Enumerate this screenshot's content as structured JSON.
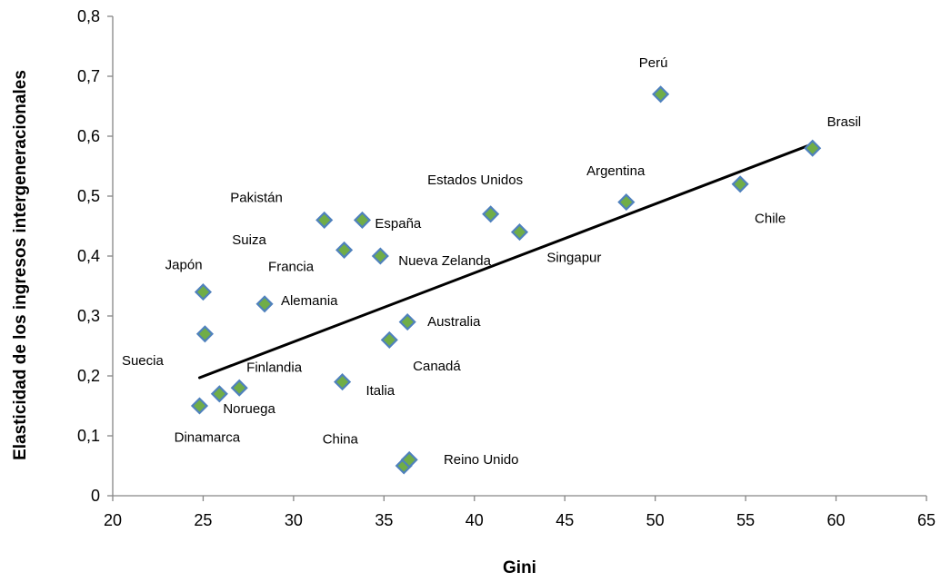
{
  "chart_data": {
    "type": "scatter",
    "title": "",
    "xlabel": "Gini",
    "ylabel": "Elasticidad de los ingresos intergeneracionales",
    "xlim": [
      20,
      65
    ],
    "ylim": [
      0,
      0.8
    ],
    "x_ticks": [
      {
        "value": 20,
        "label": "20"
      },
      {
        "value": 25,
        "label": "25"
      },
      {
        "value": 30,
        "label": "30"
      },
      {
        "value": 35,
        "label": "35"
      },
      {
        "value": 40,
        "label": "40"
      },
      {
        "value": 45,
        "label": "45"
      },
      {
        "value": 50,
        "label": "50"
      },
      {
        "value": 55,
        "label": "55"
      },
      {
        "value": 60,
        "label": "60"
      },
      {
        "value": 65,
        "label": "65"
      }
    ],
    "y_ticks": [
      {
        "value": 0,
        "label": "0"
      },
      {
        "value": 0.1,
        "label": "0,1"
      },
      {
        "value": 0.2,
        "label": "0,2"
      },
      {
        "value": 0.3,
        "label": "0,3"
      },
      {
        "value": 0.4,
        "label": "0,4"
      },
      {
        "value": 0.5,
        "label": "0,5"
      },
      {
        "value": 0.6,
        "label": "0,6"
      },
      {
        "value": 0.7,
        "label": "0,7"
      },
      {
        "value": 0.8,
        "label": "0,8"
      }
    ],
    "grid": false,
    "legend": "none",
    "marker": "diamond",
    "marker_fill": "#70ad47",
    "marker_edge": "#4f81bd",
    "trendline": {
      "x": [
        24.8,
        58.7
      ],
      "y": [
        0.197,
        0.587
      ],
      "color": "#000000"
    },
    "points": [
      {
        "x": 24.8,
        "y": 0.15
      },
      {
        "x": 25.9,
        "y": 0.17
      },
      {
        "x": 27.0,
        "y": 0.18
      },
      {
        "x": 25.1,
        "y": 0.27
      },
      {
        "x": 25.0,
        "y": 0.34
      },
      {
        "x": 28.4,
        "y": 0.32
      },
      {
        "x": 31.7,
        "y": 0.46
      },
      {
        "x": 32.8,
        "y": 0.41
      },
      {
        "x": 33.8,
        "y": 0.46
      },
      {
        "x": 34.8,
        "y": 0.4
      },
      {
        "x": 32.7,
        "y": 0.19
      },
      {
        "x": 35.3,
        "y": 0.26
      },
      {
        "x": 36.3,
        "y": 0.29
      },
      {
        "x": 36.1,
        "y": 0.05
      },
      {
        "x": 36.4,
        "y": 0.06
      },
      {
        "x": 40.9,
        "y": 0.47
      },
      {
        "x": 42.5,
        "y": 0.44
      },
      {
        "x": 48.4,
        "y": 0.49
      },
      {
        "x": 50.3,
        "y": 0.67
      },
      {
        "x": 54.7,
        "y": 0.52
      },
      {
        "x": 58.7,
        "y": 0.58
      }
    ],
    "annotations": [
      {
        "text": "Suecia",
        "x": 20.5,
        "y": 0.218
      },
      {
        "text": "Dinamarca",
        "x": 23.4,
        "y": 0.09
      },
      {
        "text": "Noruega",
        "x": 26.1,
        "y": 0.138
      },
      {
        "text": "Finlandia",
        "x": 27.4,
        "y": 0.207
      },
      {
        "text": "Japón",
        "x": 22.9,
        "y": 0.378
      },
      {
        "text": "Alemania",
        "x": 29.3,
        "y": 0.318
      },
      {
        "text": "Suiza",
        "x": 26.6,
        "y": 0.42
      },
      {
        "text": "Francia",
        "x": 28.6,
        "y": 0.375
      },
      {
        "text": "Pakistán",
        "x": 26.5,
        "y": 0.49
      },
      {
        "text": "España",
        "x": 34.5,
        "y": 0.447
      },
      {
        "text": "Nueva Zelanda",
        "x": 35.8,
        "y": 0.385
      },
      {
        "text": "Italia",
        "x": 34.0,
        "y": 0.168
      },
      {
        "text": "Canadá",
        "x": 36.6,
        "y": 0.209
      },
      {
        "text": "Australia",
        "x": 37.4,
        "y": 0.283
      },
      {
        "text": "China",
        "x": 31.6,
        "y": 0.087
      },
      {
        "text": "Reino Unido",
        "x": 38.3,
        "y": 0.053
      },
      {
        "text": "Estados Unidos",
        "x": 37.4,
        "y": 0.52
      },
      {
        "text": "Singapur",
        "x": 44.0,
        "y": 0.39
      },
      {
        "text": "Argentina",
        "x": 46.2,
        "y": 0.535
      },
      {
        "text": "Perú",
        "x": 49.1,
        "y": 0.715
      },
      {
        "text": "Brasil",
        "x": 59.5,
        "y": 0.617
      },
      {
        "text": "Chile",
        "x": 55.5,
        "y": 0.455
      }
    ]
  }
}
